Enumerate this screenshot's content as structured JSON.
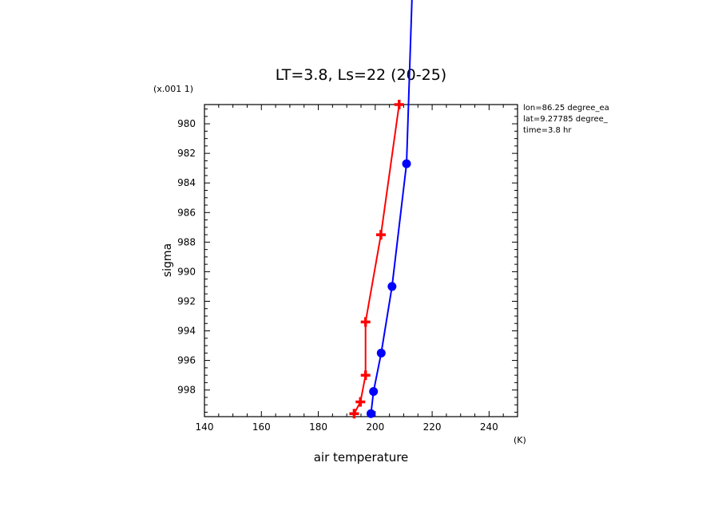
{
  "chart_data": {
    "type": "line",
    "title": "LT=3.8, Ls=22 (20-25)",
    "xlabel": "air temperature",
    "xunit": "(K)",
    "ylabel": "sigma",
    "yscale_label": "(x.001 1)",
    "xlim": [
      140,
      250
    ],
    "ylim": [
      999.8,
      978.7
    ],
    "y_inverted": true,
    "grid": false,
    "xticks": [
      140,
      160,
      180,
      200,
      220,
      240
    ],
    "yticks": [
      980,
      982,
      984,
      986,
      988,
      990,
      992,
      994,
      996,
      998
    ],
    "annotations": [
      "lon=86.25 degree_ea",
      "lat=9.27785 degree_",
      "time=3.8 hr"
    ],
    "series": [
      {
        "color": "#ff0000",
        "marker": "plus",
        "x": [
          192.6,
          194.8,
          196.6,
          196.6,
          202.0,
          208.4
        ],
        "y": [
          999.6,
          998.8,
          997.0,
          993.4,
          987.5,
          978.7
        ]
      },
      {
        "color": "#0000ff",
        "marker": "circle",
        "x": [
          198.5,
          199.4,
          202.1,
          205.9,
          211.0
        ],
        "y": [
          999.6,
          998.1,
          995.5,
          991.0,
          982.7
        ],
        "line_x": [
          198.5,
          199.4,
          202.1,
          205.9,
          211.0,
          213.0
        ],
        "line_y": [
          999.6,
          998.1,
          995.5,
          991.0,
          982.7,
          971.0
        ]
      }
    ]
  }
}
